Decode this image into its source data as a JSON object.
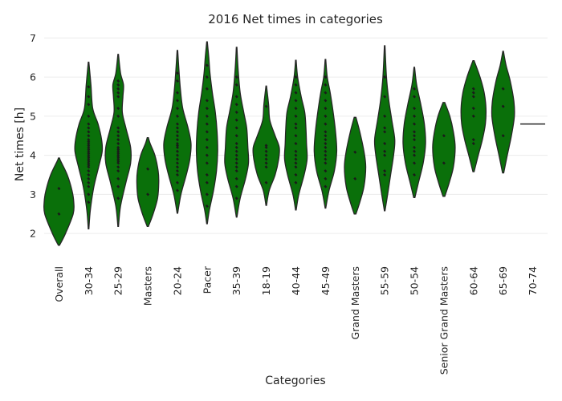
{
  "chart_data": {
    "type": "violin",
    "title": "2016 Net times in categories",
    "xlabel": "Categories",
    "ylabel": "Net times [h]",
    "ylim": [
      1.45,
      7.15
    ],
    "yticks": [
      2,
      3,
      4,
      5,
      6,
      7
    ],
    "grid": true,
    "colors": {
      "fill": "#0a700a",
      "edge": "#262626",
      "points": "#1a1a1a"
    },
    "categories": [
      "Overall",
      "30-34",
      "25-29",
      "Masters",
      "20-24",
      "Pacer",
      "35-39",
      "18-19",
      "40-44",
      "45-49",
      "Grand Masters",
      "55-59",
      "50-54",
      "Senior Grand Masters",
      "60-64",
      "65-69",
      "70-74"
    ],
    "violins": [
      {
        "category": "Overall",
        "min": 1.7,
        "max": 3.93,
        "profile": [
          [
            1.7,
            0.02
          ],
          [
            2.0,
            0.22
          ],
          [
            2.5,
            0.48
          ],
          [
            2.8,
            0.5
          ],
          [
            3.1,
            0.44
          ],
          [
            3.5,
            0.28
          ],
          [
            3.85,
            0.06
          ],
          [
            3.93,
            0.02
          ]
        ],
        "points": [
          2.5,
          3.15
        ]
      },
      {
        "category": "30-34",
        "min": 2.12,
        "max": 6.38,
        "profile": [
          [
            2.12,
            0.01
          ],
          [
            2.6,
            0.06
          ],
          [
            3.2,
            0.18
          ],
          [
            3.7,
            0.34
          ],
          [
            4.1,
            0.46
          ],
          [
            4.4,
            0.44
          ],
          [
            4.8,
            0.32
          ],
          [
            5.2,
            0.14
          ],
          [
            5.8,
            0.08
          ],
          [
            6.38,
            0.01
          ]
        ],
        "points": [
          2.8,
          3.0,
          3.2,
          3.3,
          3.4,
          3.5,
          3.6,
          3.7,
          3.75,
          3.8,
          3.85,
          3.9,
          3.95,
          4.0,
          4.05,
          4.1,
          4.15,
          4.2,
          4.25,
          4.3,
          4.35,
          4.4,
          4.5,
          4.6,
          4.7,
          4.8,
          5.0,
          5.3,
          5.5,
          5.75
        ]
      },
      {
        "category": "25-29",
        "min": 2.18,
        "max": 6.58,
        "profile": [
          [
            2.18,
            0.01
          ],
          [
            2.7,
            0.08
          ],
          [
            3.3,
            0.26
          ],
          [
            3.8,
            0.42
          ],
          [
            4.2,
            0.42
          ],
          [
            4.7,
            0.26
          ],
          [
            5.1,
            0.14
          ],
          [
            5.5,
            0.16
          ],
          [
            5.8,
            0.18
          ],
          [
            6.1,
            0.08
          ],
          [
            6.58,
            0.01
          ]
        ],
        "points": [
          2.9,
          3.2,
          3.4,
          3.6,
          3.7,
          3.8,
          3.85,
          3.9,
          3.95,
          4.0,
          4.05,
          4.1,
          4.15,
          4.2,
          4.3,
          4.4,
          4.5,
          4.6,
          4.7,
          5.0,
          5.2,
          5.5,
          5.6,
          5.7,
          5.8,
          5.9
        ]
      },
      {
        "category": "Masters",
        "min": 2.18,
        "max": 4.45,
        "profile": [
          [
            2.18,
            0.02
          ],
          [
            2.5,
            0.18
          ],
          [
            2.9,
            0.33
          ],
          [
            3.3,
            0.37
          ],
          [
            3.6,
            0.35
          ],
          [
            4.0,
            0.24
          ],
          [
            4.3,
            0.08
          ],
          [
            4.45,
            0.02
          ]
        ],
        "points": [
          3.0,
          3.65
        ]
      },
      {
        "category": "20-24",
        "min": 2.52,
        "max": 6.68,
        "profile": [
          [
            2.52,
            0.01
          ],
          [
            3.0,
            0.12
          ],
          [
            3.5,
            0.3
          ],
          [
            3.9,
            0.42
          ],
          [
            4.3,
            0.46
          ],
          [
            4.7,
            0.36
          ],
          [
            5.2,
            0.18
          ],
          [
            5.7,
            0.1
          ],
          [
            6.2,
            0.05
          ],
          [
            6.68,
            0.01
          ]
        ],
        "points": [
          3.1,
          3.3,
          3.5,
          3.6,
          3.7,
          3.8,
          3.9,
          4.0,
          4.1,
          4.2,
          4.25,
          4.3,
          4.4,
          4.5,
          4.6,
          4.7,
          4.8,
          5.0,
          5.2,
          5.4,
          5.6,
          5.9,
          6.1
        ]
      },
      {
        "category": "Pacer",
        "min": 2.25,
        "max": 6.9,
        "profile": [
          [
            2.25,
            0.01
          ],
          [
            2.6,
            0.08
          ],
          [
            3.1,
            0.22
          ],
          [
            3.6,
            0.32
          ],
          [
            4.1,
            0.36
          ],
          [
            4.6,
            0.34
          ],
          [
            5.1,
            0.28
          ],
          [
            5.6,
            0.18
          ],
          [
            6.1,
            0.1
          ],
          [
            6.5,
            0.06
          ],
          [
            6.9,
            0.01
          ]
        ],
        "points": [
          2.7,
          3.0,
          3.3,
          3.5,
          3.8,
          4.0,
          4.2,
          4.4,
          4.6,
          4.8,
          5.0,
          5.2,
          5.4,
          5.7,
          6.0,
          6.3
        ]
      },
      {
        "category": "35-39",
        "min": 2.42,
        "max": 6.76,
        "profile": [
          [
            2.42,
            0.01
          ],
          [
            2.9,
            0.12
          ],
          [
            3.4,
            0.3
          ],
          [
            3.8,
            0.4
          ],
          [
            4.2,
            0.38
          ],
          [
            4.7,
            0.34
          ],
          [
            5.1,
            0.24
          ],
          [
            5.6,
            0.12
          ],
          [
            6.2,
            0.05
          ],
          [
            6.76,
            0.01
          ]
        ],
        "points": [
          2.9,
          3.2,
          3.4,
          3.6,
          3.7,
          3.8,
          3.9,
          4.0,
          4.1,
          4.2,
          4.3,
          4.5,
          4.7,
          4.9,
          5.1,
          5.3,
          5.5,
          5.8,
          6.0
        ]
      },
      {
        "category": "18-19",
        "min": 2.72,
        "max": 5.77,
        "profile": [
          [
            2.72,
            0.01
          ],
          [
            3.1,
            0.1
          ],
          [
            3.5,
            0.3
          ],
          [
            3.9,
            0.42
          ],
          [
            4.2,
            0.44
          ],
          [
            4.5,
            0.3
          ],
          [
            4.9,
            0.12
          ],
          [
            5.3,
            0.08
          ],
          [
            5.77,
            0.01
          ]
        ],
        "points": [
          3.3,
          3.7,
          3.8,
          3.9,
          4.0,
          4.1,
          4.2,
          4.25,
          5.25
        ]
      },
      {
        "category": "40-44",
        "min": 2.6,
        "max": 6.43,
        "profile": [
          [
            2.6,
            0.01
          ],
          [
            3.0,
            0.1
          ],
          [
            3.5,
            0.28
          ],
          [
            3.9,
            0.38
          ],
          [
            4.3,
            0.36
          ],
          [
            4.7,
            0.34
          ],
          [
            5.1,
            0.3
          ],
          [
            5.5,
            0.18
          ],
          [
            6.0,
            0.06
          ],
          [
            6.43,
            0.01
          ]
        ],
        "points": [
          3.3,
          3.5,
          3.7,
          3.8,
          3.9,
          4.0,
          4.1,
          4.3,
          4.5,
          4.7,
          4.8,
          5.0,
          5.2,
          5.4,
          5.6,
          5.8,
          6.0
        ]
      },
      {
        "category": "45-49",
        "min": 2.65,
        "max": 6.45,
        "profile": [
          [
            2.65,
            0.01
          ],
          [
            3.1,
            0.12
          ],
          [
            3.6,
            0.3
          ],
          [
            4.1,
            0.38
          ],
          [
            4.6,
            0.34
          ],
          [
            5.1,
            0.26
          ],
          [
            5.6,
            0.16
          ],
          [
            6.0,
            0.06
          ],
          [
            6.45,
            0.01
          ]
        ],
        "points": [
          3.2,
          3.4,
          3.6,
          3.8,
          3.9,
          4.0,
          4.1,
          4.2,
          4.3,
          4.4,
          4.5,
          4.6,
          4.8,
          5.0,
          5.2,
          5.4,
          5.6,
          5.8,
          6.0
        ]
      },
      {
        "category": "Grand Masters",
        "min": 2.5,
        "max": 4.97,
        "profile": [
          [
            2.5,
            0.03
          ],
          [
            2.8,
            0.16
          ],
          [
            3.2,
            0.3
          ],
          [
            3.7,
            0.36
          ],
          [
            4.1,
            0.3
          ],
          [
            4.6,
            0.16
          ],
          [
            4.97,
            0.03
          ]
        ],
        "points": [
          3.4,
          4.08
        ]
      },
      {
        "category": "55-59",
        "min": 2.58,
        "max": 6.8,
        "profile": [
          [
            2.58,
            0.01
          ],
          [
            3.0,
            0.1
          ],
          [
            3.5,
            0.2
          ],
          [
            4.0,
            0.3
          ],
          [
            4.4,
            0.34
          ],
          [
            4.9,
            0.24
          ],
          [
            5.4,
            0.14
          ],
          [
            6.0,
            0.06
          ],
          [
            6.8,
            0.01
          ]
        ],
        "points": [
          3.5,
          3.6,
          4.0,
          4.1,
          4.3,
          4.6,
          4.7,
          5.0,
          5.5,
          6.0
        ]
      },
      {
        "category": "50-54",
        "min": 2.92,
        "max": 6.25,
        "profile": [
          [
            2.92,
            0.02
          ],
          [
            3.3,
            0.14
          ],
          [
            3.8,
            0.3
          ],
          [
            4.3,
            0.38
          ],
          [
            4.8,
            0.34
          ],
          [
            5.3,
            0.22
          ],
          [
            5.8,
            0.08
          ],
          [
            6.25,
            0.01
          ]
        ],
        "points": [
          3.5,
          3.8,
          4.0,
          4.1,
          4.2,
          4.4,
          4.5,
          4.6,
          4.8,
          5.0,
          5.2,
          5.5,
          5.7
        ]
      },
      {
        "category": "Senior Grand Masters",
        "min": 2.95,
        "max": 5.35,
        "profile": [
          [
            2.95,
            0.03
          ],
          [
            3.3,
            0.18
          ],
          [
            3.7,
            0.32
          ],
          [
            4.2,
            0.38
          ],
          [
            4.6,
            0.32
          ],
          [
            5.0,
            0.2
          ],
          [
            5.35,
            0.03
          ]
        ],
        "points": [
          3.8,
          4.5
        ]
      },
      {
        "category": "60-64",
        "min": 3.58,
        "max": 6.42,
        "profile": [
          [
            3.58,
            0.02
          ],
          [
            4.0,
            0.16
          ],
          [
            4.4,
            0.3
          ],
          [
            4.8,
            0.4
          ],
          [
            5.2,
            0.42
          ],
          [
            5.6,
            0.36
          ],
          [
            6.0,
            0.22
          ],
          [
            6.42,
            0.02
          ]
        ],
        "points": [
          4.3,
          4.4,
          5.0,
          5.2,
          5.5,
          5.6,
          5.7
        ]
      },
      {
        "category": "65-69",
        "min": 3.55,
        "max": 6.66,
        "profile": [
          [
            3.55,
            0.02
          ],
          [
            4.0,
            0.14
          ],
          [
            4.5,
            0.28
          ],
          [
            5.0,
            0.38
          ],
          [
            5.4,
            0.36
          ],
          [
            5.9,
            0.24
          ],
          [
            6.3,
            0.1
          ],
          [
            6.66,
            0.01
          ]
        ],
        "points": [
          4.5,
          5.25,
          5.7
        ]
      },
      {
        "category": "70-74",
        "min": 4.8,
        "max": 4.8,
        "profile": [],
        "points": [
          4.8
        ]
      }
    ]
  }
}
